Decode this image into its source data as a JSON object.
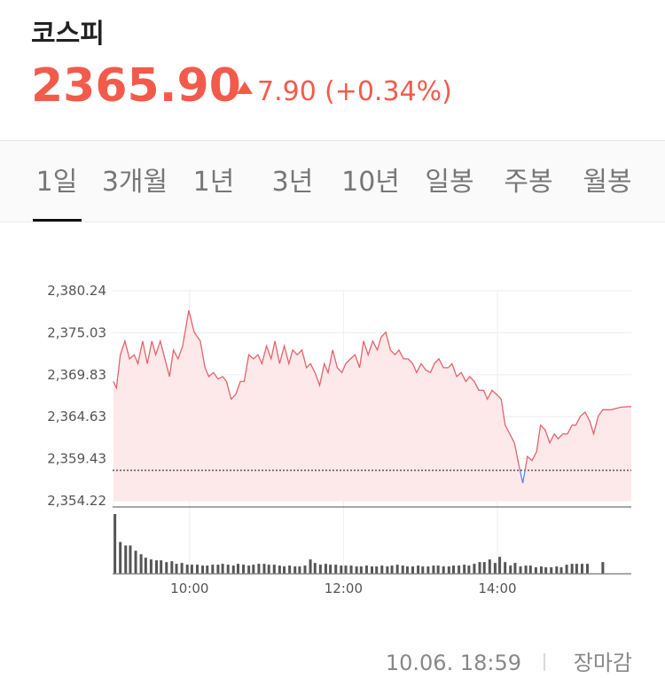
{
  "header": {
    "name": "코스피",
    "price": "2365.90",
    "change": "7.90",
    "change_pct": "(+0.34%)"
  },
  "tabs": [
    "1일",
    "3개월",
    "1년",
    "3년",
    "10년",
    "일봉",
    "주봉",
    "월봉"
  ],
  "selected_tab": 0,
  "chart_data": {
    "type": "line",
    "x": [
      9.01,
      9.05,
      9.1,
      9.16,
      9.22,
      9.28,
      9.33,
      9.39,
      9.45,
      9.51,
      9.56,
      9.62,
      9.68,
      9.74,
      9.79,
      9.85,
      9.91,
      9.97,
      9.99,
      10.06,
      10.14,
      10.2,
      10.25,
      10.31,
      10.37,
      10.43,
      10.48,
      10.54,
      10.6,
      10.66,
      10.71,
      10.77,
      10.83,
      10.89,
      10.94,
      11.0,
      11.06,
      11.11,
      11.17,
      11.23,
      11.29,
      11.34,
      11.4,
      11.46,
      11.52,
      11.57,
      11.63,
      11.69,
      11.75,
      11.8,
      11.86,
      11.92,
      11.98,
      12.03,
      12.09,
      12.15,
      12.21,
      12.26,
      12.32,
      12.38,
      12.44,
      12.49,
      12.55,
      12.61,
      12.67,
      12.72,
      12.78,
      12.84,
      12.9,
      12.95,
      13.01,
      13.07,
      13.13,
      13.18,
      13.24,
      13.3,
      13.36,
      13.41,
      13.47,
      13.53,
      13.59,
      13.64,
      13.7,
      13.76,
      13.82,
      13.87,
      13.93,
      13.99,
      14.05,
      14.1,
      14.16,
      14.22,
      14.28,
      14.33,
      14.39,
      14.45,
      14.51,
      14.56,
      14.62,
      14.68,
      14.74,
      14.79,
      14.85,
      14.91,
      14.97,
      15.02,
      15.08,
      15.14,
      15.2,
      15.25,
      15.31,
      15.37,
      15.48,
      15.6,
      15.74
    ],
    "values": [
      2369.0,
      2368.2,
      2372.3,
      2374.0,
      2371.8,
      2372.3,
      2371.2,
      2374.0,
      2371.2,
      2374.0,
      2372.3,
      2374.0,
      2371.8,
      2369.6,
      2372.9,
      2371.8,
      2373.4,
      2376.7,
      2377.8,
      2375.1,
      2374.0,
      2370.7,
      2369.6,
      2370.1,
      2369.3,
      2369.6,
      2369.0,
      2366.8,
      2367.4,
      2369.0,
      2369.0,
      2372.3,
      2371.8,
      2372.3,
      2371.2,
      2373.4,
      2371.8,
      2374.0,
      2371.2,
      2373.4,
      2371.2,
      2372.9,
      2372.3,
      2372.9,
      2370.7,
      2371.2,
      2370.1,
      2368.5,
      2371.2,
      2370.1,
      2372.9,
      2370.7,
      2370.1,
      2371.2,
      2371.8,
      2372.3,
      2370.7,
      2374.0,
      2372.3,
      2374.0,
      2372.9,
      2374.5,
      2375.1,
      2372.9,
      2372.3,
      2372.9,
      2371.8,
      2371.8,
      2371.2,
      2370.1,
      2371.2,
      2370.4,
      2370.1,
      2371.2,
      2371.8,
      2370.7,
      2370.7,
      2371.2,
      2369.6,
      2370.1,
      2369.0,
      2369.6,
      2369.0,
      2367.9,
      2367.9,
      2366.8,
      2367.9,
      2367.4,
      2366.8,
      2363.6,
      2362.5,
      2361.4,
      2358.6,
      2356.4,
      2359.7,
      2359.2,
      2360.3,
      2363.6,
      2363.0,
      2361.4,
      2362.5,
      2361.9,
      2362.5,
      2362.5,
      2363.6,
      2363.6,
      2364.7,
      2365.2,
      2364.1,
      2362.5,
      2364.7,
      2365.5,
      2365.5,
      2365.8,
      2365.9
    ],
    "color": "#e0646c",
    "below_color": "#5b84e6",
    "fill_color": "#fde8ea",
    "reference_line": 2358.0,
    "xlim": [
      9,
      15.74
    ],
    "xticks": [
      {
        "value": 10,
        "label": "10:00"
      },
      {
        "value": 12,
        "label": "12:00"
      },
      {
        "value": 14,
        "label": "14:00"
      }
    ],
    "ylim": [
      2354.22,
      2380.24
    ],
    "yticks": [
      {
        "value": 2380.24,
        "label": "2,380.24"
      },
      {
        "value": 2375.03,
        "label": "2,375.03"
      },
      {
        "value": 2369.83,
        "label": "2,369.83"
      },
      {
        "value": 2364.63,
        "label": "2,364.63"
      },
      {
        "value": 2359.43,
        "label": "2,359.43"
      },
      {
        "value": 2354.22,
        "label": "2,354.22"
      }
    ],
    "grid": true,
    "volume": {
      "color": "#555555",
      "x": [
        9.03,
        9.1,
        9.17,
        9.23,
        9.3,
        9.37,
        9.43,
        9.5,
        9.57,
        9.63,
        9.7,
        9.77,
        9.83,
        9.9,
        9.97,
        10.03,
        10.1,
        10.17,
        10.23,
        10.3,
        10.37,
        10.43,
        10.5,
        10.57,
        10.63,
        10.7,
        10.77,
        10.83,
        10.9,
        10.97,
        11.03,
        11.1,
        11.17,
        11.23,
        11.3,
        11.37,
        11.43,
        11.5,
        11.57,
        11.63,
        11.7,
        11.77,
        11.83,
        11.9,
        11.97,
        12.03,
        12.1,
        12.17,
        12.23,
        12.3,
        12.37,
        12.43,
        12.5,
        12.57,
        12.63,
        12.7,
        12.77,
        12.83,
        12.9,
        12.97,
        13.03,
        13.1,
        13.17,
        13.23,
        13.3,
        13.37,
        13.43,
        13.5,
        13.57,
        13.63,
        13.7,
        13.77,
        13.83,
        13.9,
        13.97,
        14.03,
        14.1,
        14.17,
        14.23,
        14.3,
        14.37,
        14.43,
        14.5,
        14.57,
        14.63,
        14.7,
        14.77,
        14.83,
        14.9,
        14.97,
        15.03,
        15.1,
        15.17,
        15.37
      ],
      "values": [
        68,
        36,
        32,
        32,
        26,
        22,
        18,
        16,
        15,
        15,
        13,
        14,
        11,
        12,
        10,
        10,
        10,
        9,
        9,
        10,
        10,
        11,
        10,
        9,
        11,
        10,
        9,
        10,
        11,
        11,
        10,
        10,
        9,
        8,
        9,
        8,
        8,
        9,
        16,
        12,
        10,
        11,
        10,
        10,
        9,
        9,
        9,
        8,
        8,
        9,
        8,
        8,
        9,
        8,
        9,
        10,
        9,
        8,
        8,
        9,
        8,
        8,
        9,
        9,
        8,
        8,
        9,
        9,
        10,
        9,
        11,
        13,
        13,
        16,
        12,
        19,
        13,
        9,
        12,
        8,
        9,
        9,
        7,
        8,
        7,
        7,
        8,
        7,
        10,
        11,
        11,
        11,
        11,
        13
      ]
    }
  },
  "footer": {
    "timestamp": "10.06. 18:59",
    "status": "장마감"
  }
}
